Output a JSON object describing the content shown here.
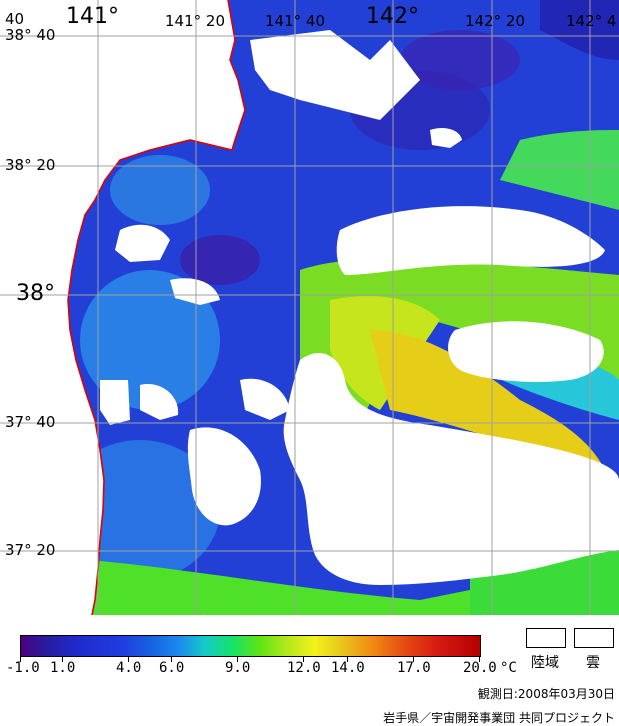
{
  "map": {
    "lon_labels": [
      "141°",
      "141° 20",
      "141° 40",
      "142°",
      "142° 20",
      "142° 4"
    ],
    "lat_labels": [
      "38° 40",
      "38° 20",
      "38°",
      "37° 40",
      "37° 20"
    ],
    "corner_label": "40"
  },
  "legend": {
    "ticks": [
      "-1.0",
      "1.0",
      "4.0",
      "6.0",
      "9.0",
      "12.0",
      "14.0",
      "17.0",
      "20.0"
    ],
    "unit": "°C",
    "land_label": "陸域",
    "cloud_label": "雲",
    "colors": {
      "land": "#ffffff",
      "cloud": "#ffffff",
      "coastline": "#e00000",
      "grid": "#a0a0a0"
    }
  },
  "footer": {
    "date": "観測日:2008年03月30日",
    "credit": "岩手県／宇宙開発事業団 共同プロジェクト"
  }
}
